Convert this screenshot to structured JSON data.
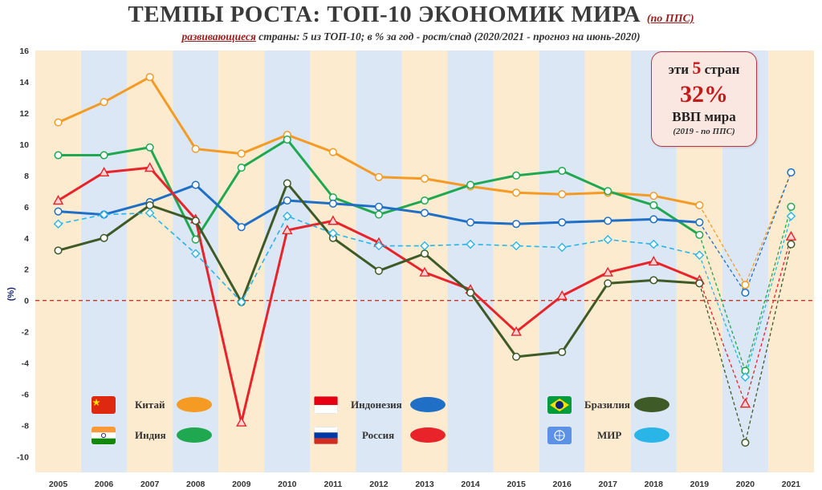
{
  "title": {
    "main": "ТЕМПЫ РОСТА: ТОП-10 ЭКОНОМИК МИРА",
    "note": "(по ППС)"
  },
  "subtitle": {
    "highlight": "развивающиеся",
    "rest": " страны: 5 из ТОП-10; в % за год - рост/спад (2020/2021 - прогноз на июнь-2020)"
  },
  "callout": {
    "line1_pre": "эти ",
    "line1_num": "5",
    "line1_post": " стран",
    "big": "32%",
    "line3": "ВВП мира",
    "line4": "(2019 - по ППС)"
  },
  "colors": {
    "band_light": "#fdebd0",
    "band_blue": "#dbe7f5",
    "zero_line": "#c0392b"
  },
  "chart_data": {
    "type": "line",
    "ylabel": "(%)",
    "ylim": [
      -11,
      16
    ],
    "yticks": [
      16,
      14,
      12,
      10,
      8,
      6,
      4,
      2,
      0,
      -2,
      -4,
      -6,
      -8,
      -10
    ],
    "categories": [
      "2005",
      "2006",
      "2007",
      "2008",
      "2009",
      "2010",
      "2011",
      "2012",
      "2013",
      "2014",
      "2015",
      "2016",
      "2017",
      "2018",
      "2019",
      "2020",
      "2021"
    ],
    "forecast_from": "2019",
    "series": [
      {
        "key": "india",
        "name": "Китай",
        "color": "#f59a23",
        "marker": "circle",
        "dash": false,
        "values": [
          11.4,
          12.7,
          14.3,
          9.7,
          9.4,
          10.6,
          9.5,
          7.9,
          7.8,
          7.3,
          6.9,
          6.8,
          6.9,
          6.7,
          6.1,
          1.0,
          8.2
        ]
      },
      {
        "key": "russia",
        "name": "Индия",
        "color": "#1fa84f",
        "marker": "circle",
        "dash": false,
        "values": [
          9.3,
          9.3,
          9.8,
          3.9,
          8.5,
          10.3,
          6.6,
          5.5,
          6.4,
          7.4,
          8.0,
          8.3,
          7.0,
          6.1,
          4.2,
          -4.5,
          6.0
        ]
      },
      {
        "key": "indonesia",
        "name": "Индонезия",
        "color": "#1f6fc6",
        "marker": "circle",
        "dash": false,
        "values": [
          5.7,
          5.5,
          6.3,
          7.4,
          4.7,
          6.4,
          6.2,
          6.0,
          5.6,
          5.0,
          4.9,
          5.0,
          5.1,
          5.2,
          5.0,
          0.5,
          8.2
        ]
      },
      {
        "key": "china",
        "name": "Россия",
        "color": "#e8232a",
        "marker": "triangle",
        "dash": false,
        "values": [
          6.4,
          8.2,
          8.5,
          5.2,
          -7.8,
          4.5,
          5.1,
          3.7,
          1.8,
          0.7,
          -2.0,
          0.3,
          1.8,
          2.5,
          1.3,
          -6.6,
          4.1
        ]
      },
      {
        "key": "brazil",
        "name": "Бразилия",
        "color": "#3d5a27",
        "marker": "circle",
        "dash": false,
        "values": [
          3.2,
          4.0,
          6.1,
          5.1,
          -0.1,
          7.5,
          4.0,
          1.9,
          3.0,
          0.5,
          -3.6,
          -3.3,
          1.1,
          1.3,
          1.1,
          -9.1,
          3.6
        ]
      },
      {
        "key": "world",
        "name": "МИР",
        "color": "#29b5e8",
        "marker": "diamond",
        "dash": true,
        "values": [
          4.9,
          5.5,
          5.6,
          3.0,
          -0.1,
          5.4,
          4.3,
          3.5,
          3.5,
          3.6,
          3.5,
          3.4,
          3.9,
          3.6,
          2.9,
          -4.9,
          5.4
        ]
      }
    ]
  },
  "legend": [
    {
      "label": "Китай",
      "color": "#f59a23",
      "flag": "china-flag"
    },
    {
      "label": "Индонезия",
      "color": "#1f6fc6",
      "flag": "indonesia-flag"
    },
    {
      "label": "Бразилия",
      "color": "#3d5a27",
      "flag": "brazil-flag"
    },
    {
      "label": "Индия",
      "color": "#1fa84f",
      "flag": "india-flag"
    },
    {
      "label": "Россия",
      "color": "#e8232a",
      "flag": "russia-flag"
    },
    {
      "label": "МИР",
      "color": "#29b5e8",
      "flag": "un-flag"
    }
  ]
}
